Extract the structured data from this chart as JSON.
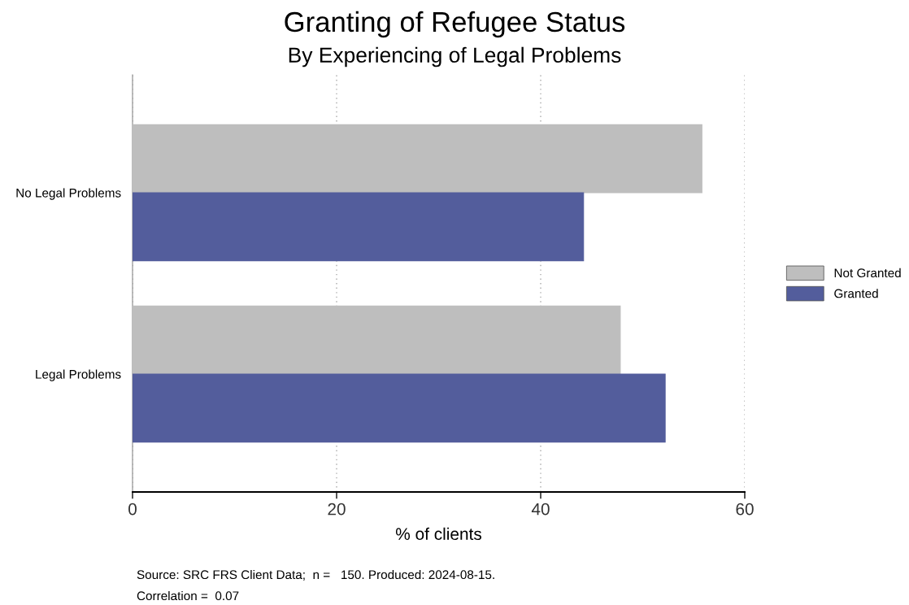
{
  "chart_data": {
    "type": "bar",
    "orientation": "horizontal",
    "title": "Granting of Refugee Status",
    "subtitle": "By Experiencing of Legal Problems",
    "xlabel": "% of clients",
    "categories": [
      "No Legal Problems",
      "Legal Problems"
    ],
    "series": [
      {
        "name": "Not Granted",
        "color": "#bebebe",
        "values": [
          55.8,
          47.8
        ]
      },
      {
        "name": "Granted",
        "color": "#535d9c",
        "values": [
          44.2,
          52.2
        ]
      }
    ],
    "xlim": [
      0,
      60
    ],
    "xticks": [
      0,
      20,
      40,
      60
    ],
    "grid": "x",
    "legend": "right",
    "annotations": [
      "Source: SRC FRS Client Data;  n =   150. Produced: 2024-08-15.",
      "Correlation =  0.07"
    ]
  }
}
